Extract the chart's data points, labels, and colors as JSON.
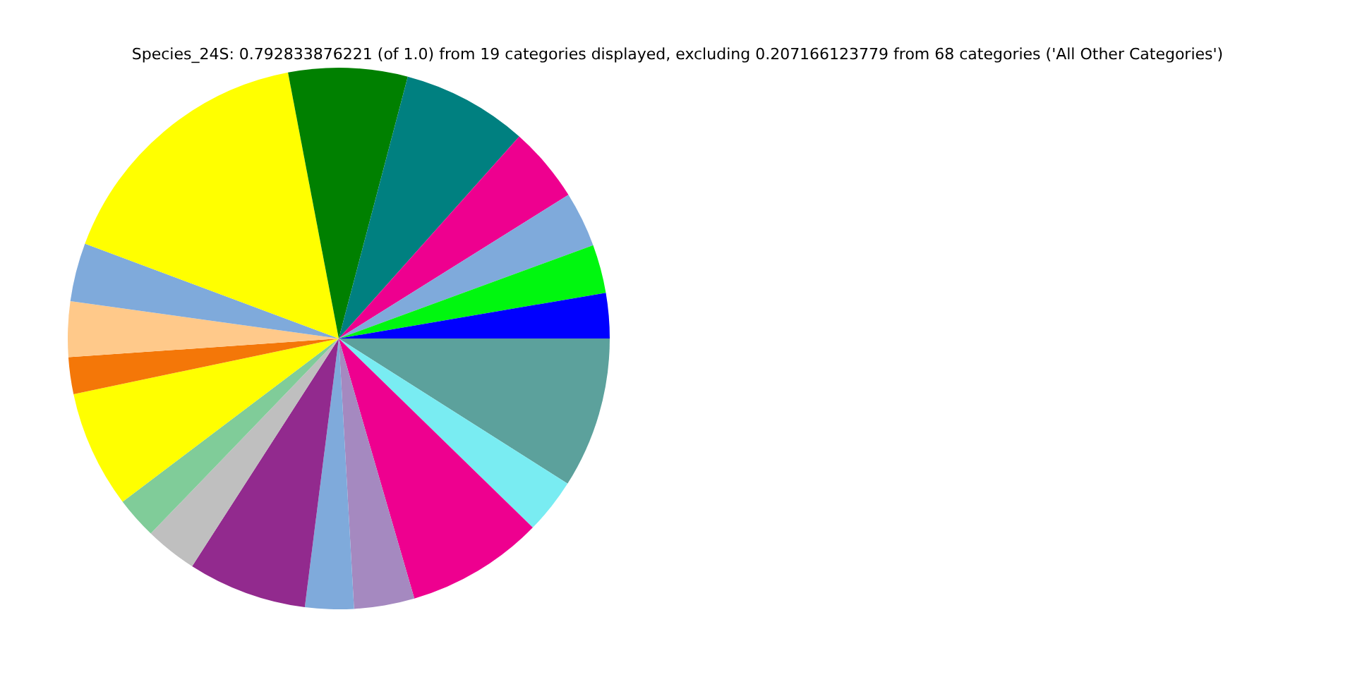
{
  "chart_data": {
    "type": "pie",
    "title": "Species_24S: 0.792833876221 (of 1.0) from 19 categories displayed, excluding 0.207166123779 from 68 categories ('All Other Categories')",
    "categories": [
      null,
      null,
      null,
      null,
      null,
      null,
      null,
      null,
      null,
      null,
      null,
      null,
      null,
      null,
      null,
      null,
      null,
      null,
      null
    ],
    "values": [
      9.0,
      3.3,
      8.2,
      3.6,
      2.9,
      7.1,
      3.1,
      2.5,
      7.0,
      2.2,
      3.3,
      3.5,
      16.3,
      7.1,
      7.5,
      4.5,
      3.3,
      2.9,
      2.7
    ],
    "colors": [
      "#5ca19c",
      "#79ecf2",
      "#ee008f",
      "#a589c0",
      "#7faadb",
      "#922a8e",
      "#bfbfbf",
      "#80cc99",
      "#ffff00",
      "#f47708",
      "#ffc98a",
      "#7faadb",
      "#ffff00",
      "#008000",
      "#008080",
      "#ee008f",
      "#7faadb",
      "#00f70f",
      "#0000ff"
    ],
    "legend": false
  }
}
